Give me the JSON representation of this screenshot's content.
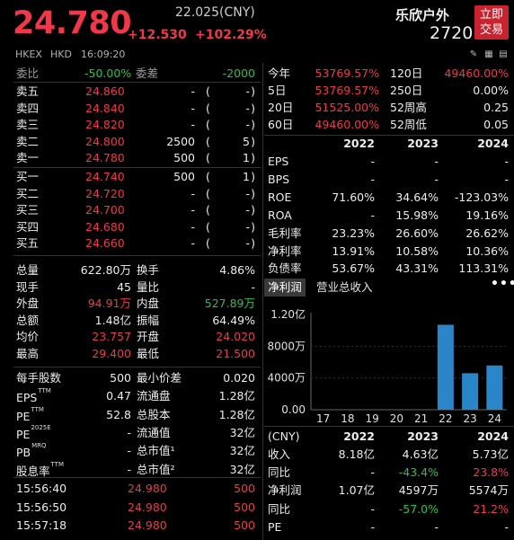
{
  "header": {
    "price": "24.780",
    "prev_close": "22.025(CNY)",
    "change": "+12.530",
    "change_pct": "+102.29%",
    "name": "乐欣户外",
    "code": "2720",
    "trade_button": "立即交易",
    "trade_line1": "立即",
    "trade_line2": "交易"
  },
  "subbar": {
    "market": "HKEX",
    "currency": "HKD",
    "time": "16:09:20",
    "icons": [
      "pencil-icon",
      "calendar-icon",
      "grid-icon"
    ]
  },
  "order_book": {
    "ratio_label": "委比",
    "ratio_value": "-50.00%",
    "diff_label": "委差",
    "diff_value": "-2000",
    "asks": [
      {
        "label": "卖五",
        "price": "24.860",
        "vol": "-",
        "cnt": "-"
      },
      {
        "label": "卖四",
        "price": "24.840",
        "vol": "-",
        "cnt": "-"
      },
      {
        "label": "卖三",
        "price": "24.820",
        "vol": "-",
        "cnt": "-"
      },
      {
        "label": "卖二",
        "price": "24.800",
        "vol": "2500",
        "cnt": "5"
      },
      {
        "label": "卖一",
        "price": "24.780",
        "vol": "500",
        "cnt": "1"
      }
    ],
    "bids": [
      {
        "label": "买一",
        "price": "24.740",
        "vol": "500",
        "cnt": "1"
      },
      {
        "label": "买二",
        "price": "24.720",
        "vol": "-",
        "cnt": "-"
      },
      {
        "label": "买三",
        "price": "24.700",
        "vol": "-",
        "cnt": "-"
      },
      {
        "label": "买四",
        "price": "24.680",
        "vol": "-",
        "cnt": "-"
      },
      {
        "label": "买五",
        "price": "24.660",
        "vol": "-",
        "cnt": "-"
      }
    ]
  },
  "quote_stats": [
    {
      "l1": "总量",
      "v1": "622.80万",
      "c1": "white",
      "l2": "换手",
      "v2": "4.86%",
      "c2": "white"
    },
    {
      "l1": "现手",
      "v1": "45",
      "c1": "white",
      "l2": "量比",
      "v2": "-",
      "c2": "white"
    },
    {
      "l1": "外盘",
      "v1": "94.91万",
      "c1": "red",
      "l2": "内盘",
      "v2": "527.89万",
      "c2": "green"
    },
    {
      "l1": "总额",
      "v1": "1.48亿",
      "c1": "white",
      "l2": "振幅",
      "v2": "64.49%",
      "c2": "white"
    },
    {
      "l1": "均价",
      "v1": "23.757",
      "c1": "red",
      "l2": "开盘",
      "v2": "24.020",
      "c2": "red"
    },
    {
      "l1": "最高",
      "v1": "29.400",
      "c1": "red",
      "l2": "最低",
      "v2": "21.500",
      "c2": "red"
    }
  ],
  "basic_stats": [
    {
      "l1": "每手股数",
      "v1": "500",
      "l2": "最小价差",
      "v2": "0.020"
    },
    {
      "l1": "EPS",
      "s1": "TTM",
      "v1": "0.47",
      "l2": "流通盘",
      "v2": "1.28亿"
    },
    {
      "l1": "PE",
      "s1": "TTM",
      "v1": "52.8",
      "l2": "总股本",
      "v2": "1.28亿"
    },
    {
      "l1": "PE",
      "s1": "2025E",
      "v1": "-",
      "l2": "流通值",
      "v2": "32亿"
    },
    {
      "l1": "PB",
      "s1": "MRQ",
      "v1": "-",
      "l2": "总市值¹",
      "v2": "32亿"
    },
    {
      "l1": "股息率",
      "s1": "TTM",
      "v1": "-",
      "l2": "总市值²",
      "v2": "32亿"
    }
  ],
  "ticks": [
    {
      "time": "15:56:40",
      "price": "24.980",
      "vol": "500"
    },
    {
      "time": "15:56:50",
      "price": "24.980",
      "vol": "500"
    },
    {
      "time": "15:57:18",
      "price": "24.980",
      "vol": "500"
    }
  ],
  "performance": [
    {
      "l1": "今年",
      "v1": "53769.57%",
      "l2": "120日",
      "v2": "49460.00%",
      "c2": "red"
    },
    {
      "l1": "5日",
      "v1": "53769.57%",
      "l2": "250日",
      "v2": "0.00%",
      "c2": "white"
    },
    {
      "l1": "20日",
      "v1": "51525.00%",
      "l2": "52周高",
      "v2": "0.25",
      "c2": "white"
    },
    {
      "l1": "60日",
      "v1": "49460.00%",
      "l2": "52周低",
      "v2": "0.05",
      "c2": "white"
    }
  ],
  "financials": {
    "years": [
      "2022",
      "2023",
      "2024"
    ],
    "rows": [
      {
        "label": "EPS",
        "vals": [
          "-",
          "-",
          "-"
        ]
      },
      {
        "label": "BPS",
        "vals": [
          "-",
          "-",
          "-"
        ]
      },
      {
        "label": "ROE",
        "vals": [
          "71.60%",
          "34.64%",
          "-123.03%"
        ]
      },
      {
        "label": "ROA",
        "vals": [
          "-",
          "15.98%",
          "19.16%"
        ]
      },
      {
        "label": "毛利率",
        "vals": [
          "23.23%",
          "26.60%",
          "26.62%"
        ]
      },
      {
        "label": "净利率",
        "vals": [
          "13.91%",
          "10.58%",
          "10.36%"
        ]
      },
      {
        "label": "负债率",
        "vals": [
          "53.67%",
          "43.31%",
          "113.31%"
        ]
      }
    ]
  },
  "chart_tabs": {
    "active": "净利润",
    "other": "营业总收入",
    "more": "•••"
  },
  "chart_data": {
    "type": "bar",
    "categories": [
      "17",
      "18",
      "19",
      "20",
      "21",
      "22",
      "23",
      "24"
    ],
    "values": [
      0,
      0,
      0,
      0,
      0,
      10700,
      4597,
      5574
    ],
    "yticks": [
      "1.20亿",
      "8000万",
      "4000万",
      "0.00"
    ],
    "ytick_values": [
      12000,
      8000,
      4000,
      0
    ],
    "ylim": [
      0,
      12000
    ],
    "bar_color": "#2a86c8"
  },
  "summary": {
    "currency": "(CNY)",
    "years": [
      "2022",
      "2023",
      "2024"
    ],
    "rows": [
      {
        "label": "收入",
        "vals": [
          "8.18亿",
          "4.63亿",
          "5.73亿"
        ],
        "colors": [
          "white",
          "white",
          "white"
        ]
      },
      {
        "label": "同比",
        "vals": [
          "-",
          "-43.4%",
          "23.8%"
        ],
        "colors": [
          "white",
          "green",
          "red"
        ]
      },
      {
        "label": "净利润",
        "vals": [
          "1.07亿",
          "4597万",
          "5574万"
        ],
        "colors": [
          "white",
          "white",
          "white"
        ]
      },
      {
        "label": "同比",
        "vals": [
          "-",
          "-57.0%",
          "21.2%"
        ],
        "colors": [
          "white",
          "green",
          "red"
        ]
      },
      {
        "label": "PE",
        "vals": [
          "-",
          "-",
          "-"
        ],
        "colors": [
          "white",
          "white",
          "white"
        ]
      }
    ]
  }
}
